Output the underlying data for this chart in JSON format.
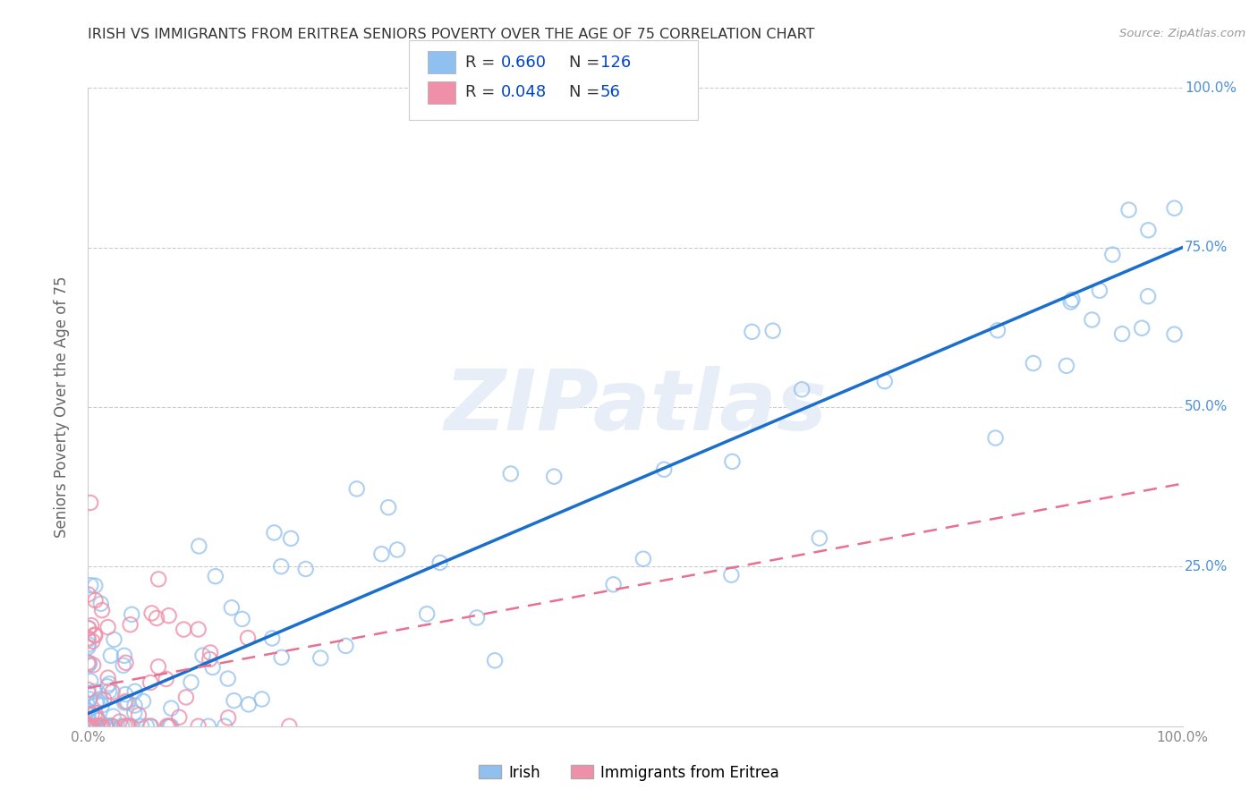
{
  "title": "IRISH VS IMMIGRANTS FROM ERITREA SENIORS POVERTY OVER THE AGE OF 75 CORRELATION CHART",
  "source": "Source: ZipAtlas.com",
  "ylabel": "Seniors Poverty Over the Age of 75",
  "irish_R": 0.66,
  "irish_N": 126,
  "eritrea_R": 0.048,
  "eritrea_N": 56,
  "irish_color": "#90c0f0",
  "irish_edge_color": "#90c0f0",
  "eritrea_color": "#f090a8",
  "eritrea_edge_color": "#f090a8",
  "irish_line_color": "#1a6fcc",
  "eritrea_line_color": "#e87090",
  "watermark_color": "#e8eef8",
  "watermark_text": "ZIPatlas",
  "background_color": "#ffffff",
  "grid_color": "#cccccc",
  "ytick_color": "#4a90d9",
  "title_color": "#333333",
  "source_color": "#999999",
  "legend_text_color": "#333333",
  "legend_value_color": "#0044cc",
  "ylabel_color": "#666666",
  "xtick_color": "#888888",
  "xlim": [
    0.0,
    1.0
  ],
  "ylim": [
    0.0,
    1.0
  ],
  "ytick_vals": [
    0.0,
    0.25,
    0.5,
    0.75,
    1.0
  ],
  "ytick_labels": [
    "",
    "25.0%",
    "50.0%",
    "75.0%",
    "100.0%"
  ],
  "xtick_vals": [
    0.0,
    1.0
  ],
  "xtick_labels": [
    "0.0%",
    "100.0%"
  ],
  "bottom_legend_labels": [
    "Irish",
    "Immigrants from Eritrea"
  ]
}
